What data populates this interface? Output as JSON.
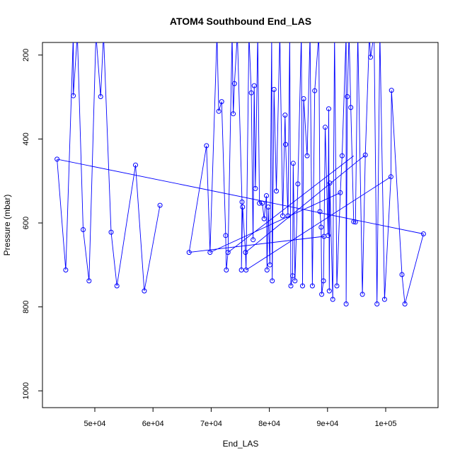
{
  "chart_data": {
    "type": "line",
    "title": "ATOM4 Southbound End_LAS",
    "xlabel": "End_LAS",
    "ylabel": "Pressure (mbar)",
    "xlim": [
      41000,
      109000
    ],
    "ylim": [
      1040,
      170
    ],
    "y_reversed": true,
    "x_ticks": [
      50000,
      60000,
      70000,
      80000,
      90000,
      100000
    ],
    "x_tick_labels": [
      "5e+04",
      "6e+04",
      "7e+04",
      "8e+04",
      "9e+04",
      "1e+05"
    ],
    "y_ticks": [
      200,
      400,
      600,
      800,
      1000
    ],
    "y_tick_labels": [
      "200",
      "400",
      "600",
      "800",
      "1000"
    ],
    "grid": false,
    "legend": "none",
    "colors": {
      "series": "#0000ff",
      "axes": "#000000",
      "background": "#ffffff"
    },
    "series": [
      {
        "points": [
          [
            43500,
            448
          ],
          [
            45000,
            712
          ],
          [
            46300,
            150
          ],
          [
            46300,
            297
          ],
          [
            47000,
            150
          ],
          [
            48000,
            616
          ],
          [
            49000,
            738
          ],
          [
            50200,
            150
          ],
          [
            51000,
            299
          ],
          [
            51500,
            150
          ],
          [
            52800,
            622
          ],
          [
            53800,
            750
          ],
          [
            57000,
            462
          ],
          [
            58500,
            762
          ],
          [
            61200,
            558
          ],
          [
            66200,
            670
          ],
          [
            69200,
            416
          ],
          [
            69800,
            670
          ],
          [
            71000,
            150
          ],
          [
            71300,
            334
          ],
          [
            71800,
            311
          ],
          [
            72500,
            630
          ],
          [
            72600,
            712
          ],
          [
            72900,
            670
          ],
          [
            73600,
            150
          ],
          [
            73800,
            340
          ],
          [
            74000,
            268
          ],
          [
            74500,
            150
          ],
          [
            75200,
            712
          ],
          [
            75300,
            550
          ],
          [
            75400,
            562
          ],
          [
            75900,
            670
          ],
          [
            76000,
            712
          ],
          [
            76500,
            150
          ],
          [
            76900,
            290
          ],
          [
            77200,
            640
          ],
          [
            77400,
            273
          ],
          [
            77600,
            518
          ],
          [
            78000,
            150
          ],
          [
            78300,
            553
          ],
          [
            78800,
            553
          ],
          [
            79100,
            590
          ],
          [
            79500,
            535
          ],
          [
            79600,
            712
          ],
          [
            79800,
            562
          ],
          [
            80100,
            700
          ],
          [
            80400,
            150
          ],
          [
            80500,
            738
          ],
          [
            80800,
            282
          ],
          [
            81200,
            524
          ],
          [
            81800,
            150
          ],
          [
            82300,
            583
          ],
          [
            82700,
            343
          ],
          [
            82800,
            413
          ],
          [
            83200,
            583
          ],
          [
            83500,
            150
          ],
          [
            83700,
            750
          ],
          [
            84000,
            726
          ],
          [
            84100,
            458
          ],
          [
            84400,
            738
          ],
          [
            84900,
            507
          ],
          [
            85500,
            150
          ],
          [
            85700,
            750
          ],
          [
            85900,
            304
          ],
          [
            86500,
            440
          ],
          [
            87000,
            150
          ],
          [
            87400,
            750
          ],
          [
            87800,
            285
          ],
          [
            88500,
            150
          ],
          [
            88700,
            573
          ],
          [
            88900,
            610
          ],
          [
            89000,
            770
          ],
          [
            89300,
            738
          ],
          [
            89400,
            632
          ],
          [
            89600,
            372
          ],
          [
            90100,
            630
          ],
          [
            90200,
            328
          ],
          [
            90300,
            762
          ],
          [
            90400,
            505
          ],
          [
            90900,
            782
          ],
          [
            91200,
            150
          ],
          [
            91600,
            750
          ],
          [
            92200,
            528
          ],
          [
            92500,
            440
          ],
          [
            93200,
            150
          ],
          [
            93200,
            793
          ],
          [
            93400,
            299
          ],
          [
            93700,
            150
          ],
          [
            94000,
            325
          ],
          [
            94500,
            597
          ],
          [
            94800,
            598
          ],
          [
            95200,
            150
          ],
          [
            96000,
            770
          ],
          [
            96500,
            438
          ],
          [
            97200,
            150
          ],
          [
            97400,
            205
          ],
          [
            98000,
            150
          ],
          [
            98500,
            793
          ],
          [
            99000,
            150
          ],
          [
            99800,
            782
          ],
          [
            100900,
            490
          ],
          [
            101000,
            284
          ],
          [
            102800,
            723
          ],
          [
            103300,
            793
          ],
          [
            106500,
            626
          ]
        ],
        "line_path": [
          [
            43500,
            448
          ],
          [
            45000,
            712
          ],
          [
            46300,
            150
          ],
          [
            46300,
            297
          ],
          [
            47000,
            150
          ],
          [
            48000,
            616
          ],
          [
            49000,
            738
          ],
          [
            50200,
            150
          ],
          [
            51000,
            299
          ],
          [
            51500,
            150
          ],
          [
            52800,
            622
          ],
          [
            53800,
            750
          ],
          [
            57000,
            462
          ],
          [
            58500,
            762
          ],
          [
            61200,
            558
          ],
          [
            null,
            null
          ],
          [
            66200,
            670
          ],
          [
            69200,
            416
          ],
          [
            69800,
            670
          ],
          [
            71000,
            150
          ],
          [
            71300,
            334
          ],
          [
            71800,
            311
          ],
          [
            72500,
            630
          ],
          [
            72600,
            712
          ],
          [
            72900,
            670
          ],
          [
            73600,
            150
          ],
          [
            73800,
            340
          ],
          [
            74000,
            268
          ],
          [
            74500,
            150
          ],
          [
            75300,
            550
          ],
          [
            75200,
            712
          ],
          [
            75400,
            562
          ],
          [
            75900,
            670
          ],
          [
            76000,
            712
          ],
          [
            76500,
            150
          ],
          [
            76900,
            290
          ],
          [
            77200,
            640
          ],
          [
            77400,
            273
          ],
          [
            77600,
            518
          ],
          [
            78000,
            150
          ],
          [
            78300,
            553
          ],
          [
            78800,
            553
          ],
          [
            79100,
            590
          ],
          [
            79500,
            535
          ],
          [
            79600,
            712
          ],
          [
            79800,
            562
          ],
          [
            80100,
            700
          ],
          [
            80400,
            150
          ],
          [
            80500,
            738
          ],
          [
            80800,
            282
          ],
          [
            81200,
            524
          ],
          [
            81800,
            150
          ],
          [
            82300,
            583
          ],
          [
            82700,
            343
          ],
          [
            82800,
            413
          ],
          [
            83200,
            583
          ],
          [
            83500,
            150
          ],
          [
            83700,
            750
          ],
          [
            84000,
            726
          ],
          [
            84100,
            458
          ],
          [
            84400,
            738
          ],
          [
            84900,
            507
          ],
          [
            85500,
            150
          ],
          [
            85700,
            750
          ],
          [
            85900,
            304
          ],
          [
            86500,
            440
          ],
          [
            87000,
            150
          ],
          [
            87400,
            750
          ],
          [
            87800,
            285
          ],
          [
            88500,
            150
          ],
          [
            88700,
            573
          ],
          [
            88900,
            610
          ],
          [
            89000,
            770
          ],
          [
            89300,
            738
          ],
          [
            89400,
            632
          ],
          [
            89600,
            372
          ],
          [
            90100,
            630
          ],
          [
            90200,
            328
          ],
          [
            90300,
            762
          ],
          [
            90400,
            505
          ],
          [
            90900,
            782
          ],
          [
            91200,
            150
          ],
          [
            91600,
            750
          ],
          [
            92200,
            528
          ],
          [
            92500,
            440
          ],
          [
            93200,
            150
          ],
          [
            93200,
            793
          ],
          [
            93400,
            299
          ],
          [
            93700,
            150
          ],
          [
            94000,
            325
          ],
          [
            94500,
            597
          ],
          [
            94800,
            598
          ],
          [
            95200,
            150
          ],
          [
            96000,
            770
          ],
          [
            96500,
            438
          ],
          [
            97200,
            150
          ],
          [
            97400,
            205
          ],
          [
            98000,
            150
          ],
          [
            98500,
            793
          ],
          [
            99000,
            150
          ],
          [
            99800,
            782
          ],
          [
            100900,
            490
          ],
          [
            101000,
            284
          ],
          [
            102800,
            723
          ],
          [
            103300,
            793
          ],
          [
            106500,
            626
          ],
          [
            null,
            null
          ],
          [
            43500,
            448
          ],
          [
            106500,
            626
          ],
          [
            null,
            null
          ],
          [
            66200,
            670
          ],
          [
            89400,
            632
          ],
          [
            null,
            null
          ],
          [
            69800,
            670
          ],
          [
            92200,
            528
          ],
          [
            null,
            null
          ],
          [
            72900,
            670
          ],
          [
            94500,
            440
          ],
          [
            null,
            null
          ],
          [
            75900,
            670
          ],
          [
            96500,
            438
          ],
          [
            null,
            null
          ],
          [
            76000,
            712
          ],
          [
            100900,
            490
          ]
        ]
      }
    ]
  }
}
